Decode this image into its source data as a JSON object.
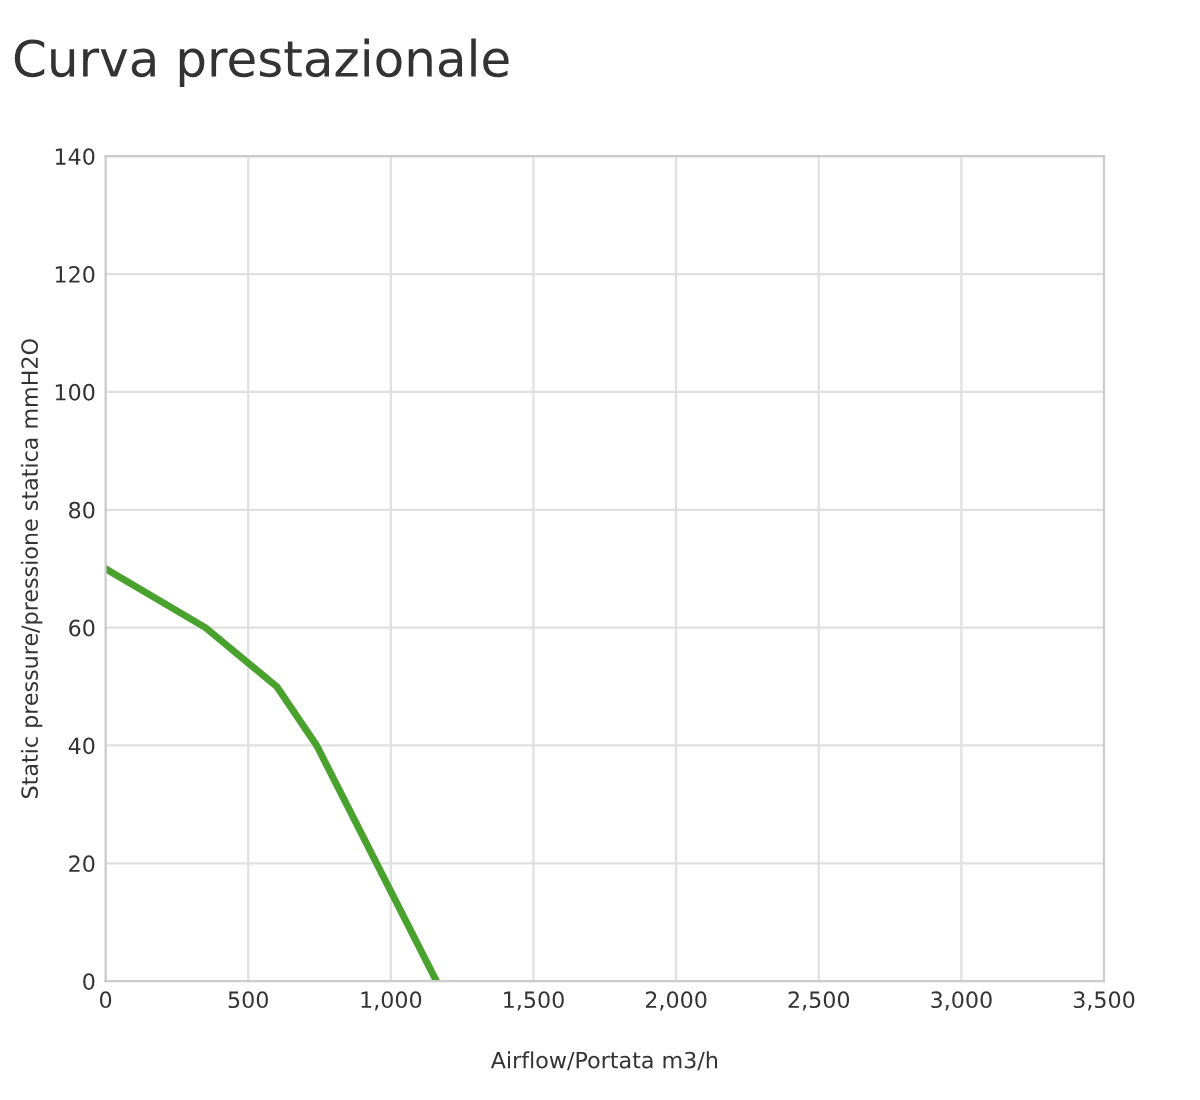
{
  "chart_data": {
    "type": "line",
    "title": "Curva prestazionale",
    "xlabel": "Airflow/Portata m3/h",
    "ylabel": "Static pressure/pressione statica mmH2O",
    "x": [
      0,
      350,
      600,
      740,
      1160
    ],
    "series": [
      {
        "color": "#4aa22e",
        "values": [
          70,
          60,
          50,
          40,
          0
        ]
      }
    ],
    "xlim": [
      0,
      3500
    ],
    "ylim": [
      0,
      140
    ],
    "xticks": [
      0,
      500,
      {
        "value": 1000,
        "label": "1,000"
      },
      {
        "value": 1500,
        "label": "1,500"
      },
      {
        "value": 2000,
        "label": "2,000"
      },
      {
        "value": 2500,
        "label": "2,500"
      },
      {
        "value": 3000,
        "label": "3,000"
      },
      {
        "value": 3500,
        "label": "3,500"
      }
    ],
    "yticks": [
      0,
      20,
      40,
      60,
      80,
      100,
      120,
      140
    ],
    "grid": true,
    "marker": "none",
    "line_style": "solid"
  }
}
